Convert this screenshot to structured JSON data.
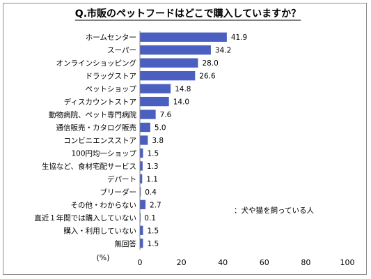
{
  "chart_data": {
    "type": "bar",
    "orientation": "horizontal",
    "title": "Q.市販のペットフードはどこで購入していますか？",
    "note": "：犬や猫を飼っている人",
    "unit_label": "(%)",
    "categories": [
      "ホームセンター",
      "スーパー",
      "オンラインショッピング",
      "ドラッグストア",
      "ペットショップ",
      "ディスカウントストア",
      "動物病院、ペット専門病院",
      "通信販売・カタログ販売",
      "コンビニエンスストア",
      "100円均一ショップ",
      "生協など、食材宅配サービス",
      "デパート",
      "ブリーダー",
      "その他・わからない",
      "直近１年間では購入していない",
      "購入・利用していない",
      "無回答"
    ],
    "values": [
      41.9,
      34.2,
      28.0,
      26.6,
      14.8,
      14.0,
      7.6,
      5.0,
      3.8,
      1.5,
      1.3,
      1.1,
      0.4,
      2.7,
      0.1,
      1.5,
      1.5
    ],
    "value_labels": [
      "41.9",
      "34.2",
      "28.0",
      "26.6",
      "14.8",
      "14.0",
      "7.6",
      "5.0",
      "3.8",
      "1.5",
      "1.3",
      "1.1",
      "0.4",
      "2.7",
      "0.1",
      "1.5",
      "1.5"
    ],
    "xlim": [
      0,
      100
    ],
    "xticks": [
      "0",
      "20",
      "40",
      "60",
      "80",
      "100"
    ],
    "grid": false,
    "bar_color": "#4a5fbf"
  }
}
